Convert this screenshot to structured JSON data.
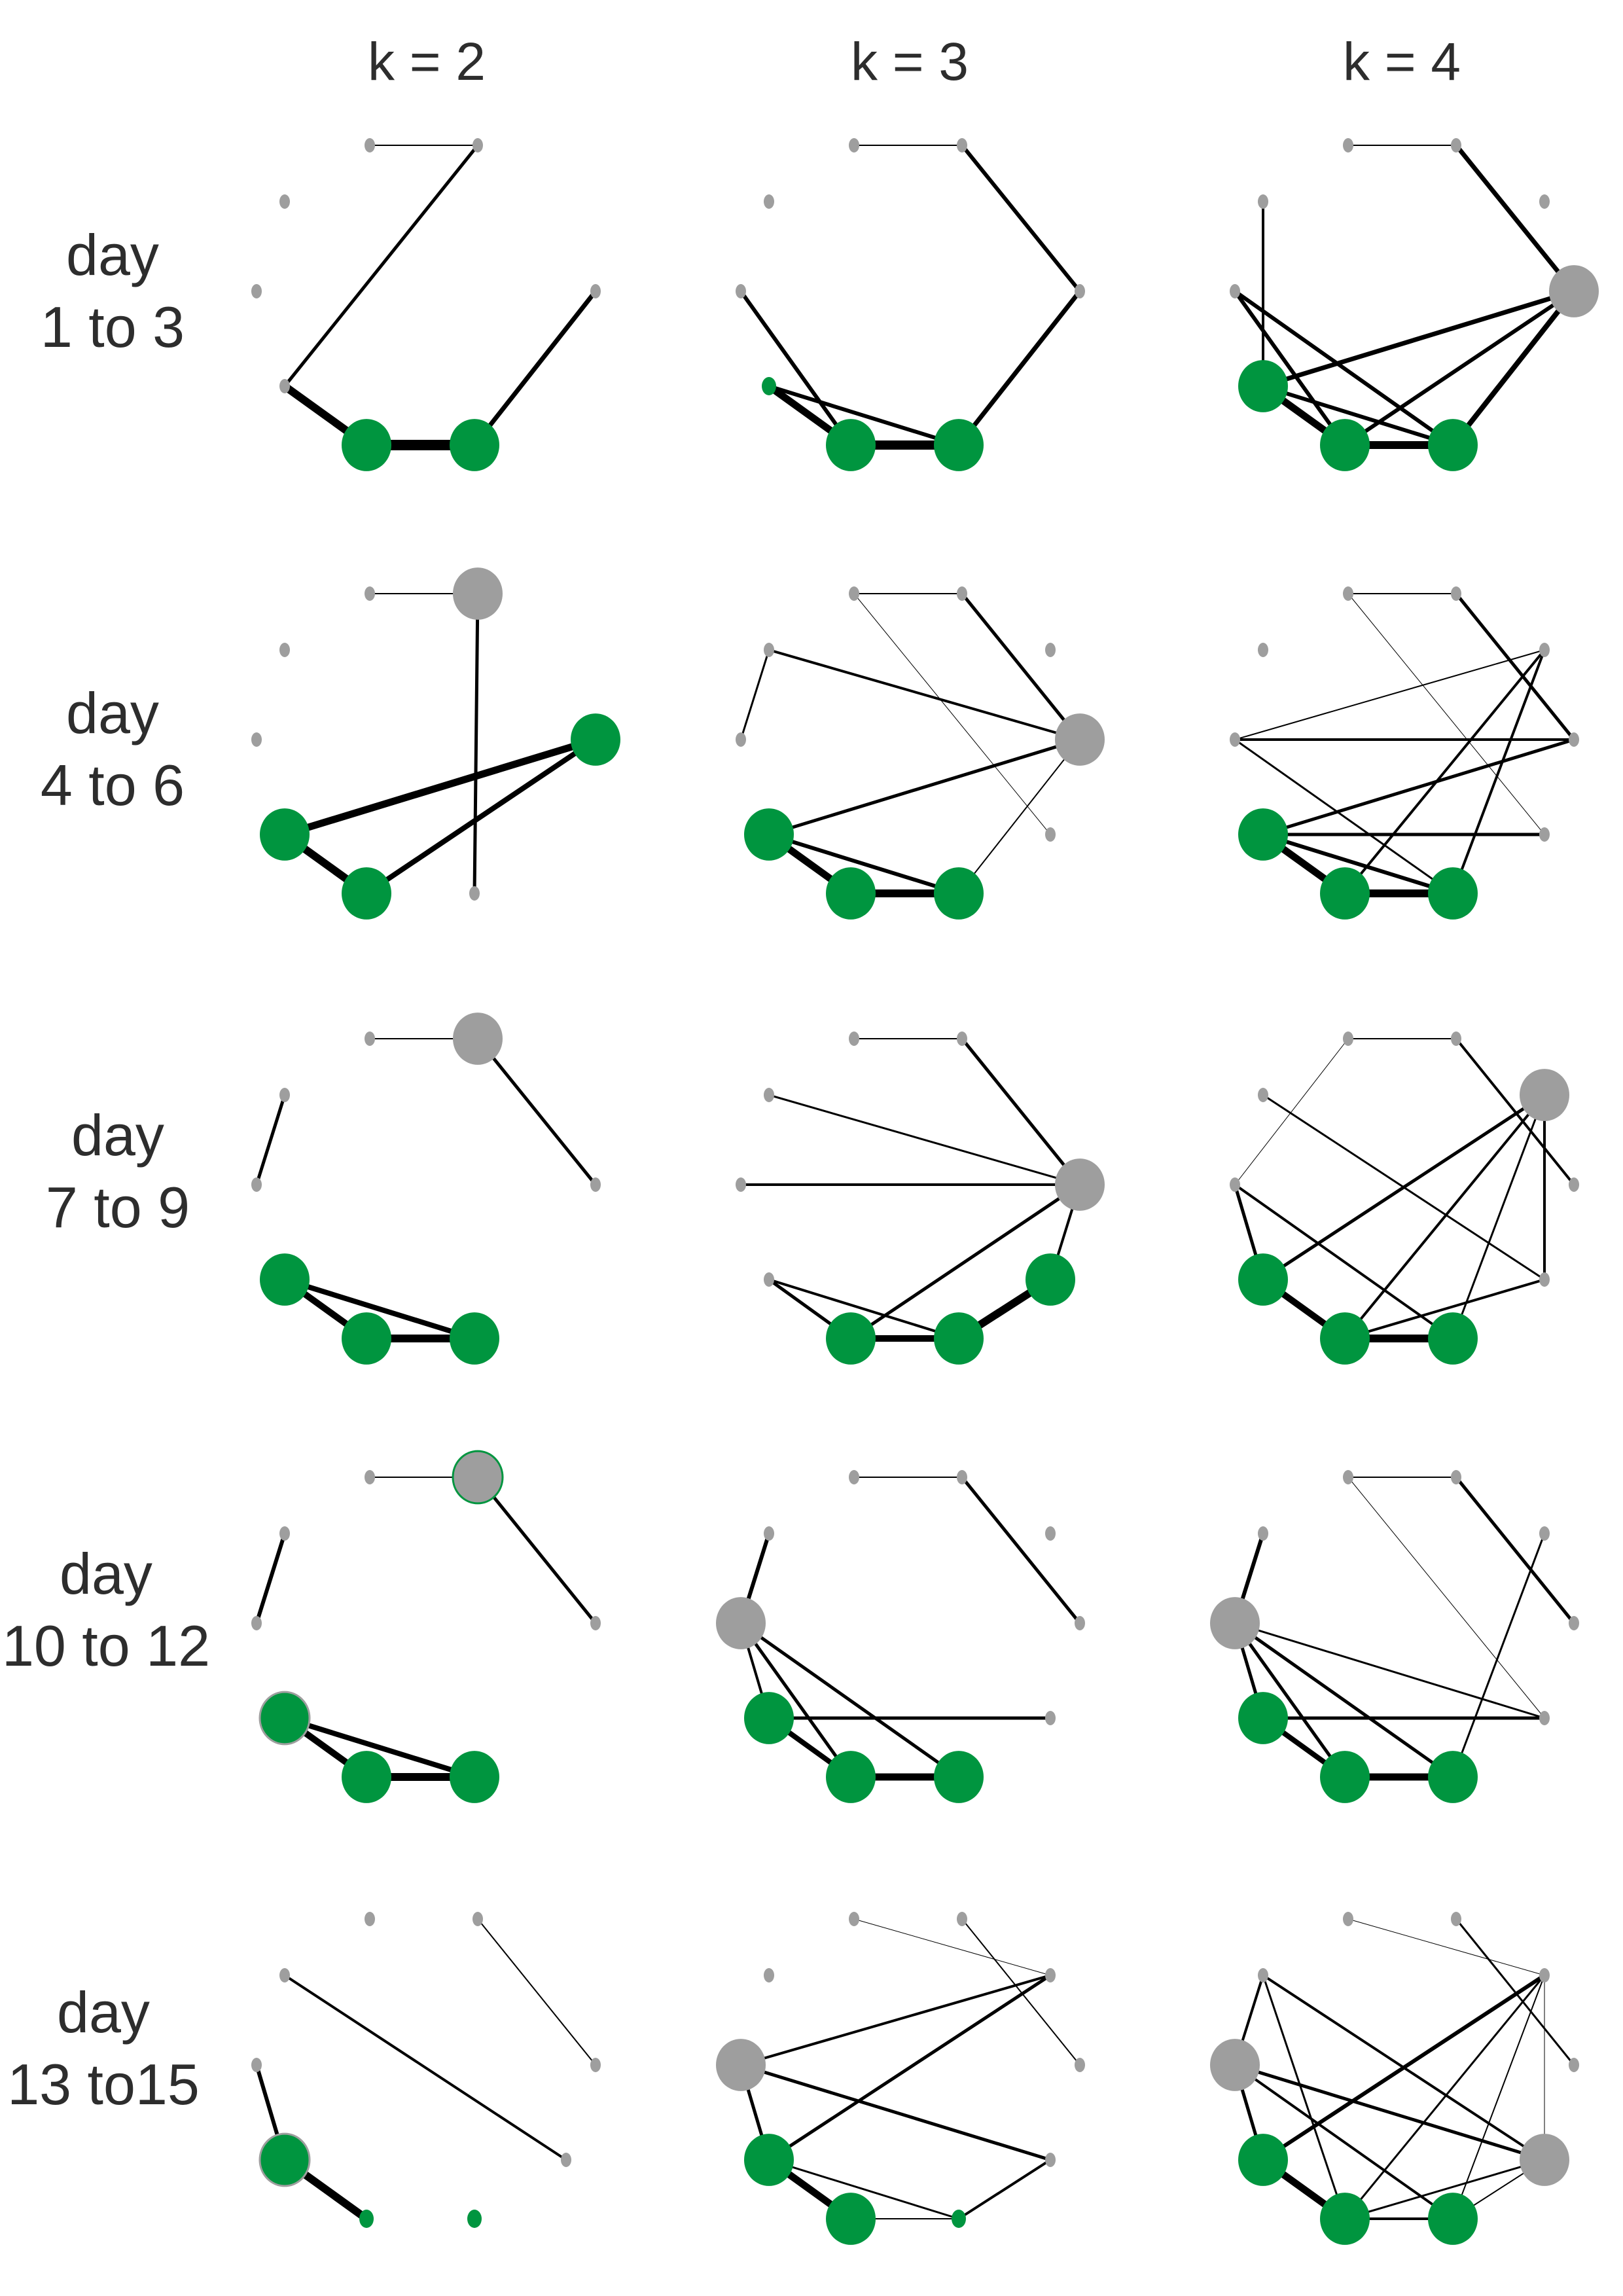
{
  "column_labels": [
    "k = 2",
    "k = 3",
    "k = 4"
  ],
  "row_labels": [
    [
      "day",
      "1 to 3"
    ],
    [
      "day",
      "4 to 6"
    ],
    [
      "day",
      "7 to 9"
    ],
    [
      "day",
      "10 to 12"
    ],
    [
      "day",
      "13 to15"
    ]
  ],
  "colors": {
    "green": "#00953f",
    "grey": "#9e9e9e",
    "edge": "#000000",
    "text": "#2d2d2d"
  },
  "node_sizes": {
    "s": "small",
    "m": "medium",
    "l": "large",
    "h": "highlight"
  },
  "panels": [
    {
      "row": 0,
      "col": 0,
      "nodes": [
        [
          "g",
          "s"
        ],
        [
          "g",
          "s"
        ],
        [
          "g",
          "s"
        ],
        [
          "g",
          "s"
        ],
        [
          "g",
          "s"
        ],
        [
          "G",
          "l"
        ],
        [
          "G",
          "l"
        ],
        [
          "g",
          "s"
        ]
      ],
      "edges": [
        [
          0,
          1,
          2
        ],
        [
          1,
          4,
          5
        ],
        [
          4,
          5,
          12
        ],
        [
          5,
          6,
          16
        ],
        [
          6,
          7,
          7
        ]
      ]
    },
    {
      "row": 0,
      "col": 1,
      "nodes": [
        [
          "g",
          "s"
        ],
        [
          "g",
          "s"
        ],
        [
          "g",
          "s"
        ],
        [
          "g",
          "s"
        ],
        [
          "G",
          "s"
        ],
        [
          "G",
          "l"
        ],
        [
          "G",
          "l"
        ],
        [
          "g",
          "s"
        ]
      ],
      "edges": [
        [
          0,
          1,
          2
        ],
        [
          1,
          7,
          6
        ],
        [
          3,
          5,
          6
        ],
        [
          4,
          5,
          11
        ],
        [
          4,
          6,
          6
        ],
        [
          5,
          6,
          14
        ],
        [
          6,
          7,
          7
        ]
      ]
    },
    {
      "row": 0,
      "col": 2,
      "nodes": [
        [
          "g",
          "s"
        ],
        [
          "g",
          "s"
        ],
        [
          "g",
          "s"
        ],
        [
          "g",
          "s"
        ],
        [
          "G",
          "l"
        ],
        [
          "G",
          "l"
        ],
        [
          "G",
          "l"
        ],
        [
          "g",
          "s"
        ],
        [
          "g",
          "l"
        ]
      ],
      "edges": [
        [
          0,
          1,
          2
        ],
        [
          1,
          8,
          7
        ],
        [
          2,
          4,
          4
        ],
        [
          3,
          5,
          6
        ],
        [
          3,
          6,
          6
        ],
        [
          4,
          5,
          11
        ],
        [
          4,
          6,
          6
        ],
        [
          4,
          8,
          7
        ],
        [
          5,
          6,
          12
        ],
        [
          5,
          8,
          6
        ],
        [
          6,
          8,
          8
        ]
      ]
    },
    {
      "row": 1,
      "col": 0,
      "nodes": [
        [
          "g",
          "s"
        ],
        [
          "g",
          "l"
        ],
        [
          "g",
          "s"
        ],
        [
          "g",
          "s"
        ],
        [
          "G",
          "l"
        ],
        [
          "G",
          "l"
        ],
        [
          "G",
          "l"
        ],
        [
          "g",
          "s"
        ]
      ],
      "edges": [
        [
          0,
          1,
          2
        ],
        [
          1,
          7,
          5
        ],
        [
          4,
          5,
          11
        ],
        [
          4,
          6,
          8
        ],
        [
          5,
          6,
          12
        ]
      ]
    },
    {
      "row": 1,
      "col": 1,
      "nodes": [
        [
          "g",
          "s"
        ],
        [
          "g",
          "s"
        ],
        [
          "g",
          "s"
        ],
        [
          "g",
          "s"
        ],
        [
          "g",
          "s"
        ],
        [
          "G",
          "l"
        ],
        [
          "G",
          "l"
        ],
        [
          "G",
          "l"
        ],
        [
          "g",
          "s"
        ],
        [
          "g",
          "l"
        ]
      ],
      "edges": [
        [
          0,
          1,
          2
        ],
        [
          0,
          8,
          1
        ],
        [
          1,
          9,
          5
        ],
        [
          3,
          4,
          3
        ],
        [
          5,
          6,
          11
        ],
        [
          5,
          7,
          6
        ],
        [
          6,
          7,
          12
        ],
        [
          5,
          9,
          5
        ],
        [
          7,
          9,
          2
        ],
        [
          3,
          9,
          4
        ]
      ]
    },
    {
      "row": 1,
      "col": 2,
      "nodes": [
        [
          "g",
          "s"
        ],
        [
          "g",
          "s"
        ],
        [
          "g",
          "s"
        ],
        [
          "g",
          "s"
        ],
        [
          "g",
          "s"
        ],
        [
          "G",
          "l"
        ],
        [
          "G",
          "l"
        ],
        [
          "G",
          "l"
        ],
        [
          "g",
          "s"
        ],
        [
          "g",
          "s"
        ]
      ],
      "edges": [
        [
          0,
          1,
          2
        ],
        [
          0,
          8,
          1
        ],
        [
          1,
          9,
          5
        ],
        [
          3,
          4,
          2
        ],
        [
          3,
          6,
          4
        ],
        [
          3,
          7,
          4
        ],
        [
          4,
          9,
          4
        ],
        [
          5,
          6,
          11
        ],
        [
          5,
          7,
          6
        ],
        [
          5,
          8,
          5
        ],
        [
          5,
          9,
          5
        ],
        [
          6,
          7,
          12
        ],
        [
          7,
          4,
          3
        ]
      ]
    },
    {
      "row": 2,
      "col": 0,
      "nodes": [
        [
          "g",
          "s"
        ],
        [
          "g",
          "l"
        ],
        [
          "g",
          "s"
        ],
        [
          "g",
          "s"
        ],
        [
          "g",
          "s"
        ],
        [
          "G",
          "l"
        ],
        [
          "G",
          "l"
        ],
        [
          "G",
          "l"
        ]
      ],
      "edges": [
        [
          0,
          1,
          2
        ],
        [
          1,
          2,
          5
        ],
        [
          3,
          4,
          5
        ],
        [
          5,
          6,
          10
        ],
        [
          5,
          7,
          8
        ],
        [
          6,
          7,
          12
        ]
      ]
    },
    {
      "row": 2,
      "col": 1,
      "nodes": [
        [
          "g",
          "s"
        ],
        [
          "g",
          "s"
        ],
        [
          "g",
          "s"
        ],
        [
          "g",
          "s"
        ],
        [
          "g",
          "s"
        ],
        [
          "g",
          "s"
        ],
        [
          "G",
          "l"
        ],
        [
          "G",
          "l"
        ],
        [
          "G",
          "l"
        ],
        [
          "g",
          "l"
        ]
      ],
      "edges": [
        [
          0,
          1,
          2
        ],
        [
          1,
          2,
          5
        ],
        [
          3,
          9,
          3
        ],
        [
          4,
          9,
          4
        ],
        [
          5,
          6,
          5
        ],
        [
          5,
          7,
          4
        ],
        [
          6,
          7,
          10
        ],
        [
          6,
          9,
          5
        ],
        [
          7,
          8,
          12
        ],
        [
          8,
          9,
          4
        ]
      ]
    },
    {
      "row": 2,
      "col": 2,
      "nodes": [
        [
          "g",
          "s"
        ],
        [
          "g",
          "s"
        ],
        [
          "g",
          "s"
        ],
        [
          "g",
          "s"
        ],
        [
          "g",
          "s"
        ],
        [
          "g",
          "l"
        ],
        [
          "G",
          "l"
        ],
        [
          "G",
          "l"
        ],
        [
          "G",
          "l"
        ],
        [
          "g",
          "s"
        ]
      ],
      "edges": [
        [
          0,
          1,
          2
        ],
        [
          0,
          4,
          1
        ],
        [
          1,
          2,
          4
        ],
        [
          3,
          9,
          3
        ],
        [
          4,
          6,
          5
        ],
        [
          4,
          8,
          4
        ],
        [
          5,
          6,
          5
        ],
        [
          5,
          7,
          4
        ],
        [
          5,
          8,
          3
        ],
        [
          5,
          9,
          4
        ],
        [
          6,
          7,
          10
        ],
        [
          7,
          8,
          12
        ],
        [
          7,
          9,
          4
        ]
      ]
    },
    {
      "row": 3,
      "col": 0,
      "nodes": [
        [
          "g",
          "s"
        ],
        [
          "g",
          "h"
        ],
        [
          "g",
          "s"
        ],
        [
          "g",
          "s"
        ],
        [
          "g",
          "s"
        ],
        [
          "G",
          "h"
        ],
        [
          "G",
          "l"
        ],
        [
          "G",
          "l"
        ]
      ],
      "edges": [
        [
          0,
          1,
          2
        ],
        [
          1,
          2,
          5
        ],
        [
          3,
          4,
          6
        ],
        [
          5,
          6,
          10
        ],
        [
          5,
          7,
          8
        ],
        [
          6,
          7,
          12
        ]
      ]
    },
    {
      "row": 3,
      "col": 1,
      "nodes": [
        [
          "g",
          "s"
        ],
        [
          "g",
          "s"
        ],
        [
          "g",
          "s"
        ],
        [
          "g",
          "s"
        ],
        [
          "g",
          "l"
        ],
        [
          "G",
          "l"
        ],
        [
          "G",
          "l"
        ],
        [
          "G",
          "l"
        ],
        [
          "g",
          "s"
        ],
        [
          "g",
          "s"
        ]
      ],
      "edges": [
        [
          0,
          1,
          2
        ],
        [
          1,
          2,
          5
        ],
        [
          3,
          4,
          6
        ],
        [
          4,
          6,
          5
        ],
        [
          4,
          7,
          5
        ],
        [
          5,
          6,
          8
        ],
        [
          5,
          8,
          5
        ],
        [
          6,
          7,
          11
        ],
        [
          4,
          5,
          4
        ]
      ]
    },
    {
      "row": 3,
      "col": 2,
      "nodes": [
        [
          "g",
          "s"
        ],
        [
          "g",
          "s"
        ],
        [
          "g",
          "s"
        ],
        [
          "g",
          "s"
        ],
        [
          "g",
          "l"
        ],
        [
          "G",
          "l"
        ],
        [
          "G",
          "l"
        ],
        [
          "G",
          "l"
        ],
        [
          "g",
          "s"
        ],
        [
          "g",
          "s"
        ]
      ],
      "edges": [
        [
          0,
          1,
          2
        ],
        [
          0,
          8,
          1
        ],
        [
          1,
          2,
          5
        ],
        [
          3,
          4,
          6
        ],
        [
          4,
          5,
          5
        ],
        [
          4,
          6,
          5
        ],
        [
          4,
          7,
          5
        ],
        [
          5,
          6,
          8
        ],
        [
          5,
          8,
          5
        ],
        [
          6,
          7,
          11
        ],
        [
          7,
          9,
          3
        ],
        [
          4,
          8,
          3
        ]
      ]
    },
    {
      "row": 4,
      "col": 0,
      "nodes": [
        [
          "g",
          "s"
        ],
        [
          "g",
          "s"
        ],
        [
          "g",
          "s"
        ],
        [
          "g",
          "s"
        ],
        [
          "g",
          "s"
        ],
        [
          "G",
          "h"
        ],
        [
          "G",
          "s"
        ],
        [
          "G",
          "s"
        ],
        [
          "g",
          "s"
        ]
      ],
      "edges": [
        [
          1,
          2,
          2
        ],
        [
          3,
          8,
          4
        ],
        [
          5,
          4,
          6
        ],
        [
          5,
          6,
          12
        ]
      ]
    },
    {
      "row": 4,
      "col": 1,
      "nodes": [
        [
          "g",
          "s"
        ],
        [
          "g",
          "s"
        ],
        [
          "g",
          "s"
        ],
        [
          "g",
          "s"
        ],
        [
          "g",
          "l"
        ],
        [
          "G",
          "l"
        ],
        [
          "G",
          "l"
        ],
        [
          "G",
          "s"
        ],
        [
          "g",
          "s"
        ],
        [
          "g",
          "s"
        ]
      ],
      "edges": [
        [
          0,
          8,
          1
        ],
        [
          1,
          2,
          2
        ],
        [
          4,
          5,
          5
        ],
        [
          4,
          9,
          5
        ],
        [
          4,
          8,
          4
        ],
        [
          5,
          6,
          11
        ],
        [
          5,
          7,
          3
        ],
        [
          6,
          7,
          2
        ],
        [
          5,
          8,
          5
        ],
        [
          7,
          9,
          4
        ]
      ]
    },
    {
      "row": 4,
      "col": 2,
      "nodes": [
        [
          "g",
          "s"
        ],
        [
          "g",
          "s"
        ],
        [
          "g",
          "s"
        ],
        [
          "g",
          "s"
        ],
        [
          "g",
          "l"
        ],
        [
          "G",
          "l"
        ],
        [
          "G",
          "l"
        ],
        [
          "G",
          "l"
        ],
        [
          "g",
          "s"
        ],
        [
          "g",
          "l"
        ]
      ],
      "edges": [
        [
          0,
          8,
          1
        ],
        [
          1,
          2,
          3
        ],
        [
          3,
          4,
          4
        ],
        [
          3,
          9,
          4
        ],
        [
          4,
          5,
          5
        ],
        [
          4,
          9,
          5
        ],
        [
          5,
          6,
          11
        ],
        [
          5,
          8,
          6
        ],
        [
          6,
          7,
          4
        ],
        [
          6,
          8,
          3
        ],
        [
          7,
          8,
          2
        ],
        [
          8,
          9,
          1
        ],
        [
          6,
          9,
          3
        ],
        [
          7,
          9,
          2
        ],
        [
          4,
          7,
          4
        ],
        [
          3,
          6,
          3
        ]
      ]
    }
  ]
}
